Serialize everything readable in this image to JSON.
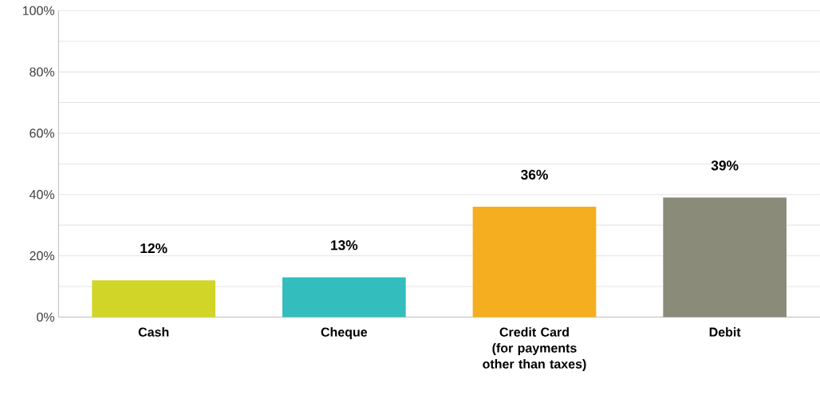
{
  "chart_data": {
    "type": "bar",
    "categories": [
      "Cash",
      "Cheque",
      "Credit Card (for payments other than taxes)",
      "Debit"
    ],
    "values": [
      12,
      13,
      36,
      39
    ],
    "colors": [
      "#d0d528",
      "#33bdbd",
      "#f5ae1f",
      "#8a8b79"
    ],
    "value_labels": [
      "12%",
      "13%",
      "36%",
      "39%"
    ],
    "ylim": [
      0,
      100
    ],
    "yticks": [
      {
        "value": 0,
        "label": "0%"
      },
      {
        "value": 10,
        "label": null
      },
      {
        "value": 20,
        "label": "20%"
      },
      {
        "value": 30,
        "label": null
      },
      {
        "value": 40,
        "label": "40%"
      },
      {
        "value": 50,
        "label": null
      },
      {
        "value": 60,
        "label": "60%"
      },
      {
        "value": 70,
        "label": null
      },
      {
        "value": 80,
        "label": "80%"
      },
      {
        "value": 90,
        "label": null
      },
      {
        "value": 100,
        "label": "100%"
      }
    ],
    "grid": "y"
  }
}
